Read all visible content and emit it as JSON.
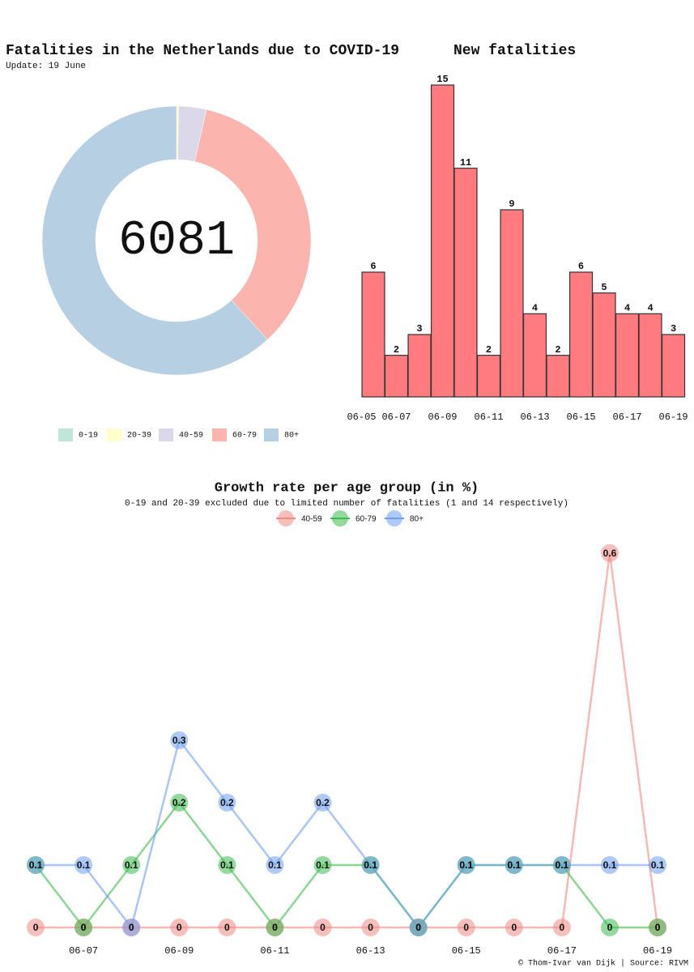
{
  "chart_data": [
    {
      "type": "pie",
      "title": "Fatalities in the Netherlands due to COVID-19",
      "subtitle": "Update: 19 June",
      "center_label": "6081",
      "categories": [
        "0-19",
        "20-39",
        "40-59",
        "60-79",
        "80+"
      ],
      "values": [
        1,
        14,
        203,
        2103,
        3760
      ],
      "colors": [
        "#bfe6d8",
        "#ffffcc",
        "#dbd8ea",
        "#fbb4ae",
        "#b6cfe2"
      ],
      "legend": "bottom"
    },
    {
      "type": "bar",
      "title": "New fatalities",
      "x": [
        6,
        7,
        8,
        9,
        10,
        11,
        12,
        13,
        14,
        15,
        16,
        17,
        18,
        19
      ],
      "values": [
        6,
        2,
        3,
        15,
        11,
        2,
        9,
        4,
        2,
        6,
        5,
        4,
        4,
        3
      ],
      "color": "#ff7b7f",
      "xlim": [
        5,
        19.5
      ],
      "ylim": [
        0,
        15
      ],
      "xticks": [
        {
          "value": 5,
          "label": "06-05"
        },
        {
          "value": 7,
          "label": "06-07"
        },
        {
          "value": 9,
          "label": "06-09"
        },
        {
          "value": 11,
          "label": "06-11"
        },
        {
          "value": 13,
          "label": "06-13"
        },
        {
          "value": 15,
          "label": "06-15"
        },
        {
          "value": 17,
          "label": "06-17"
        },
        {
          "value": 19,
          "label": "06-19"
        }
      ]
    },
    {
      "type": "line",
      "title": "Growth rate per age group (in %)",
      "subtitle": "0-19 and 20-39 excluded due to limited number of fatalities (1 and 14 respectively)",
      "credit": "© Thom-Ivar van Dijk | Source: RIVM",
      "x": [
        6,
        7,
        8,
        9,
        10,
        11,
        12,
        13,
        14,
        15,
        16,
        17,
        18,
        19
      ],
      "series": [
        {
          "name": "40-59",
          "color": "#f08a84",
          "values": [
            0,
            0,
            0,
            0,
            0,
            0,
            0,
            0,
            0,
            0,
            0,
            0,
            0.6,
            0
          ]
        },
        {
          "name": "60-79",
          "color": "#3dbb4f",
          "values": [
            0.1,
            0,
            0.1,
            0.2,
            0.1,
            0,
            0.1,
            0.1,
            0,
            0.1,
            0.1,
            0.1,
            0,
            0
          ]
        },
        {
          "name": "80+",
          "color": "#6f9ef0",
          "values": [
            0.1,
            0.1,
            0,
            0.3,
            0.2,
            0.1,
            0.2,
            0.1,
            0,
            0.1,
            0.1,
            0.1,
            0.1,
            0.1
          ]
        }
      ],
      "xlim": [
        5.5,
        19.5
      ],
      "ylim": [
        -0.02,
        0.64
      ],
      "legend": "top",
      "xticks": [
        {
          "value": 7,
          "label": "06-07"
        },
        {
          "value": 9,
          "label": "06-09"
        },
        {
          "value": 11,
          "label": "06-11"
        },
        {
          "value": 13,
          "label": "06-13"
        },
        {
          "value": 15,
          "label": "06-15"
        },
        {
          "value": 17,
          "label": "06-17"
        },
        {
          "value": 19,
          "label": "06-19"
        }
      ]
    }
  ]
}
